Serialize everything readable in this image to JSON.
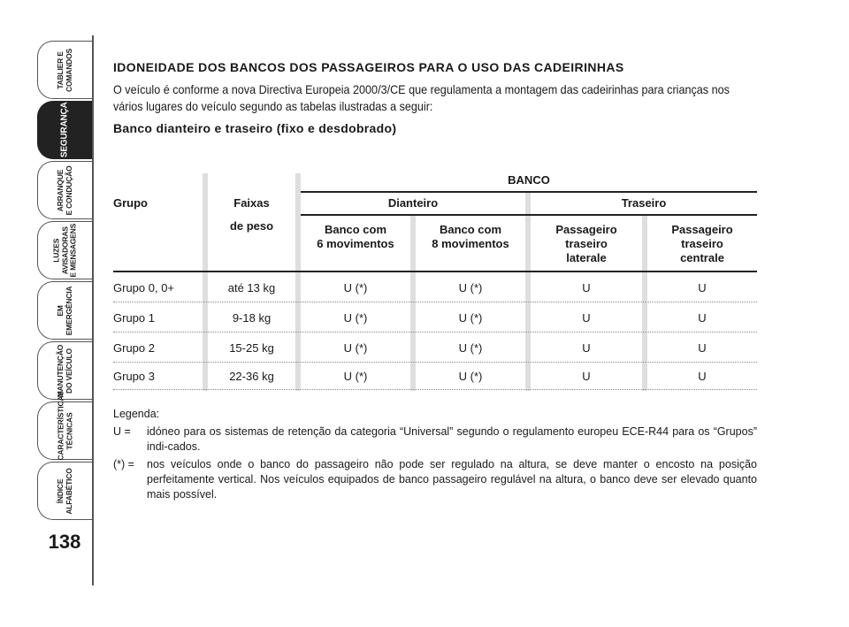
{
  "sidebar": {
    "tabs": [
      {
        "label": "TABLIER E\nCOMANDOS",
        "active": false
      },
      {
        "label": "SEGURANÇA",
        "active": true
      },
      {
        "label": "ARRANQUE\nE CONDUÇÃO",
        "active": false
      },
      {
        "label": "LUZES\nAVISADORAS\nE MENSAGENS",
        "active": false
      },
      {
        "label": "EM EMERGÊNCIA",
        "active": false
      },
      {
        "label": "MANUTENÇÃO\nDO VEÍCULO",
        "active": false
      },
      {
        "label": "CARACTERÍSTICAS\nTÉCNICAS",
        "active": false
      },
      {
        "label": "ÍNDICE\nALFABÉTICO",
        "active": false
      }
    ],
    "page_number": "138"
  },
  "content": {
    "title": "IDONEIDADE DOS BANCOS DOS PASSAGEIROS PARA O USO DAS CADEIRINHAS",
    "intro": "O veículo é conforme a nova Directiva Europeia 2000/3/CE que regulamenta a montagem das cadeirinhas para crianças nos vários lugares do veículo segundo as tabelas ilustradas a seguir:",
    "subtitle": "Banco dianteiro e traseiro (fixo e desdobrado)"
  },
  "table": {
    "banco": "BANCO",
    "grupo": "Grupo",
    "faixas": "Faixas",
    "de_peso": "de peso",
    "dianteiro": "Dianteiro",
    "traseiro": "Traseiro",
    "col1": "Banco com\n6 movimentos",
    "col2": "Banco com\n8 movimentos",
    "col3": "Passageiro\ntraseiro\nlaterale",
    "col4": "Passageiro\ntraseiro\ncentrale",
    "rows": [
      [
        "Grupo 0, 0+",
        "até 13 kg",
        "U (*)",
        "U (*)",
        "U",
        "U"
      ],
      [
        "Grupo 1",
        "9-18 kg",
        "U (*)",
        "U (*)",
        "U",
        "U"
      ],
      [
        "Grupo 2",
        "15-25 kg",
        "U (*)",
        "U (*)",
        "U",
        "U"
      ],
      [
        "Grupo 3",
        "22-36 kg",
        "U (*)",
        "U (*)",
        "U",
        "U"
      ]
    ]
  },
  "legend": {
    "title": "Legenda:",
    "u_key": "U =",
    "u_text": "idóneo para os sistemas de retenção da categoria “Universal” segundo o regulamento europeu ECE-R44 para os “Grupos” indi-cados.",
    "star_key": "(*) =",
    "star_text": "nos veículos onde o banco do passageiro não pode ser regulado na altura, se deve manter o encosto na posição perfeitamente vertical. Nos veículos equipados de banco passageiro regulável na altura, o banco deve ser elevado quanto mais possível."
  }
}
